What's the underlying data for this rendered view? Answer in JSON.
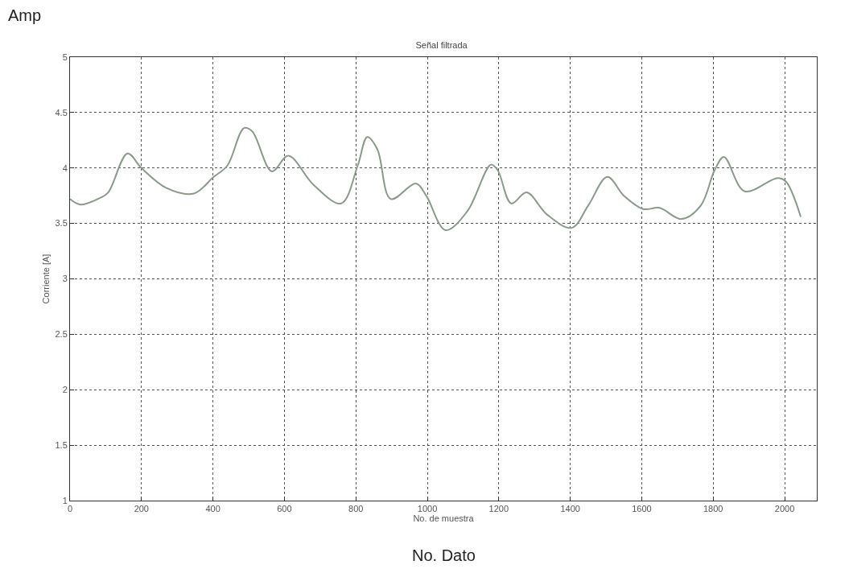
{
  "chart_data": {
    "type": "line",
    "title": "Señal filtrada",
    "xlabel": "No. de muestra",
    "ylabel": "Corriente [A]",
    "annotations": [
      "Amp",
      "No. Dato"
    ],
    "x": [
      0,
      29,
      84,
      107,
      161,
      200,
      270,
      347,
      402,
      440,
      487,
      510,
      565,
      611,
      681,
      759,
      805,
      832,
      860,
      898,
      968,
      997,
      1051,
      1112,
      1178,
      1197,
      1235,
      1278,
      1335,
      1404,
      1450,
      1504,
      1550,
      1604,
      1650,
      1711,
      1765,
      1804,
      1830,
      1888,
      1980,
      2003,
      2045
    ],
    "series": [
      {
        "color": "#8a9a8a",
        "values": [
          3.72,
          3.67,
          3.73,
          3.78,
          4.13,
          4.0,
          3.82,
          3.77,
          3.92,
          4.02,
          4.36,
          4.33,
          3.97,
          4.11,
          3.85,
          3.68,
          4.02,
          4.28,
          4.17,
          3.72,
          3.86,
          3.75,
          3.44,
          3.61,
          4.03,
          3.98,
          3.68,
          3.78,
          3.58,
          3.46,
          3.66,
          3.92,
          3.75,
          3.63,
          3.64,
          3.54,
          3.66,
          3.98,
          4.1,
          3.79,
          3.91,
          3.88,
          3.56
        ]
      }
    ],
    "xlim": [
      0,
      2090
    ],
    "ylim": [
      1,
      5
    ],
    "xticks": [
      0,
      200,
      400,
      600,
      800,
      1000,
      1200,
      1400,
      1600,
      1800,
      2000
    ],
    "yticks": [
      1,
      1.5,
      2,
      2.5,
      3,
      3.5,
      4,
      4.5,
      5
    ],
    "grid": true,
    "line_style": "solid",
    "marker": "none"
  }
}
